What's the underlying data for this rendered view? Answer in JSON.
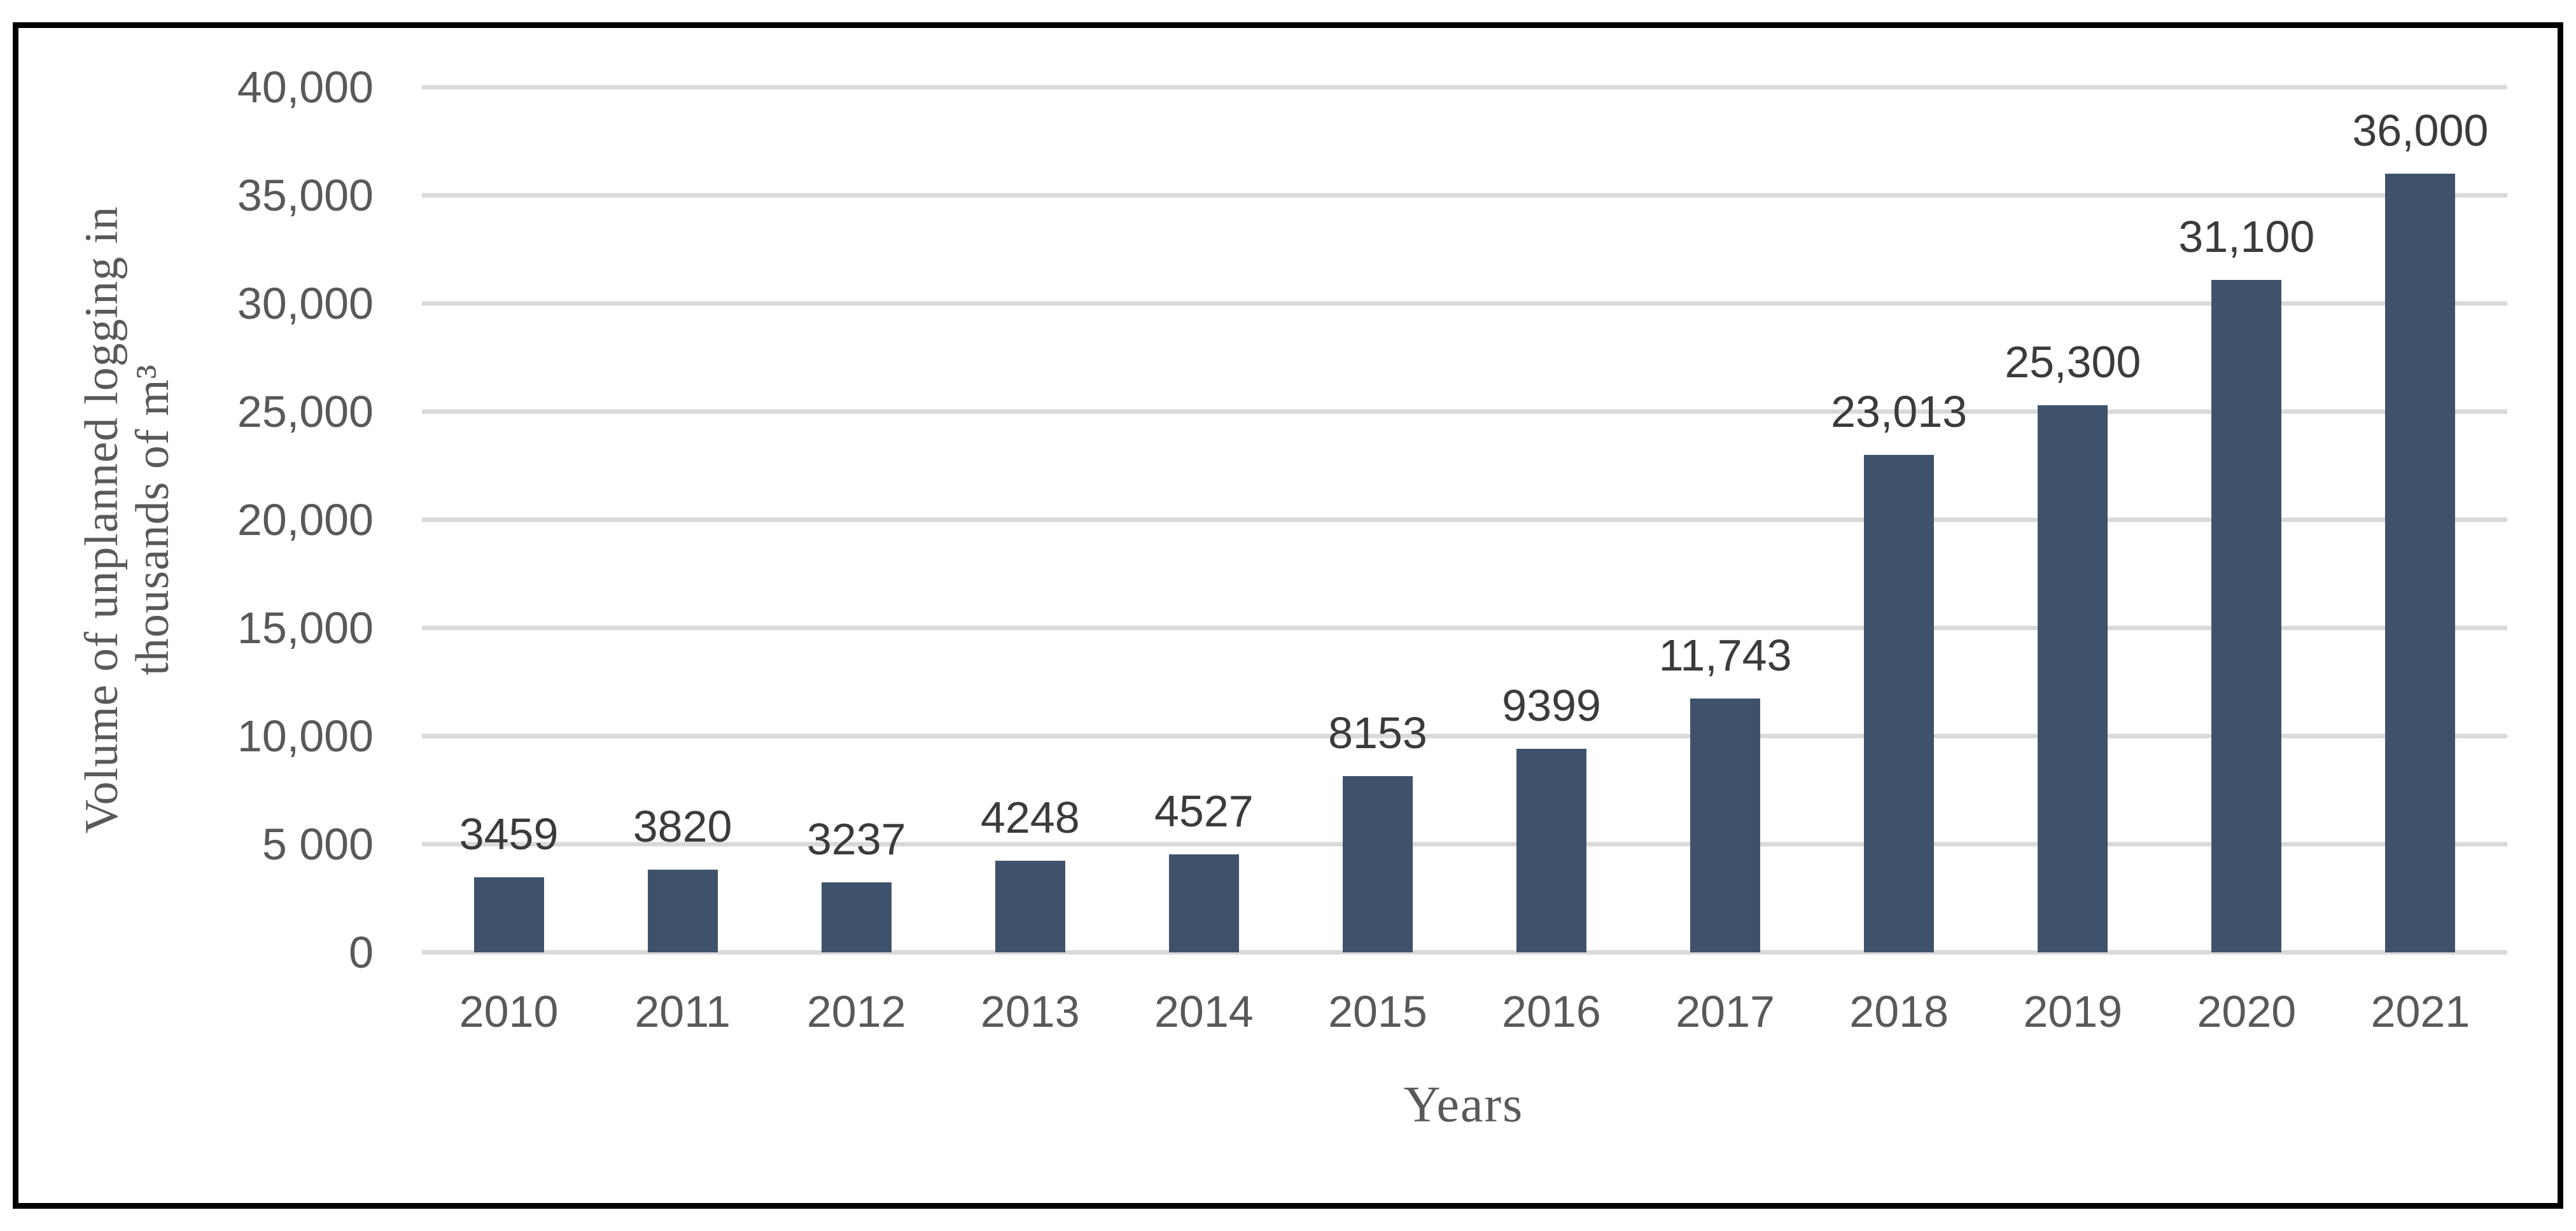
{
  "chart_data": {
    "type": "bar",
    "categories": [
      "2010",
      "2011",
      "2012",
      "2013",
      "2014",
      "2015",
      "2016",
      "2017",
      "2018",
      "2019",
      "2020",
      "2021"
    ],
    "values": [
      3459,
      3820,
      3237,
      4248,
      4527,
      8153,
      9399,
      11743,
      23013,
      25300,
      31100,
      36000
    ],
    "data_labels": [
      "3459",
      "3820",
      "3237",
      "4248",
      "4527",
      "8153",
      "9399",
      "11,743",
      "23,013",
      "25,300",
      "31,100",
      "36,000"
    ],
    "y_ticks_top_to_bottom": [
      "40,000",
      "35,000",
      "30,000",
      "25,000",
      "20,000",
      "15,000",
      "10,000",
      "5 000",
      "0"
    ],
    "ylim": [
      0,
      40000
    ],
    "xlabel": "Years",
    "ylabel_line1": "Volume of unplanned logging in",
    "ylabel_line2": "thousands of m³",
    "grid": true,
    "legend": "none",
    "colors": {
      "bar": "#3F526B",
      "gridline": "#D9D9D9",
      "axis_text": "#595959",
      "data_label_text": "#3B3B3B",
      "border": "#000000"
    }
  }
}
